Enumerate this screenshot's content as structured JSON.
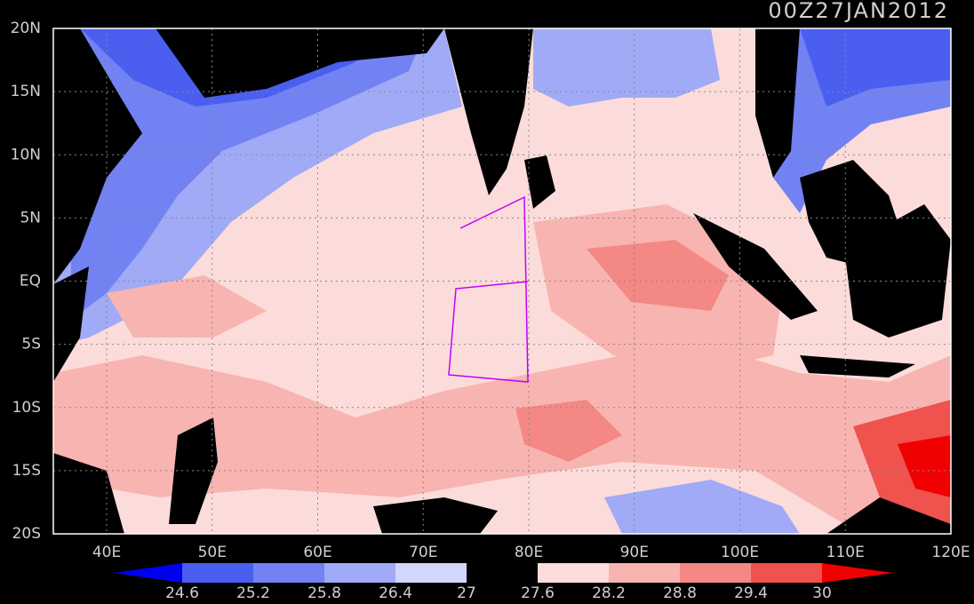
{
  "title": "00Z27JAN2012",
  "lat_labels": [
    "20N",
    "15N",
    "10N",
    "5N",
    "EQ",
    "5S",
    "10S",
    "15S",
    "20S"
  ],
  "lon_labels": [
    "40E",
    "50E",
    "60E",
    "70E",
    "80E",
    "90E",
    "100E",
    "110E",
    "120E"
  ],
  "colorbar": {
    "labels": [
      24.6,
      25.2,
      25.8,
      26.4,
      27,
      27.6,
      28.2,
      28.8,
      29.4,
      30
    ],
    "colors": [
      "#0000f0",
      "#4a5ef0",
      "#7282f2",
      "#a0aaf6",
      "#d2d6fa",
      "#000000",
      "#fcdcda",
      "#f8b4b0",
      "#f48884",
      "#f0524e",
      "#f00000"
    ]
  }
}
